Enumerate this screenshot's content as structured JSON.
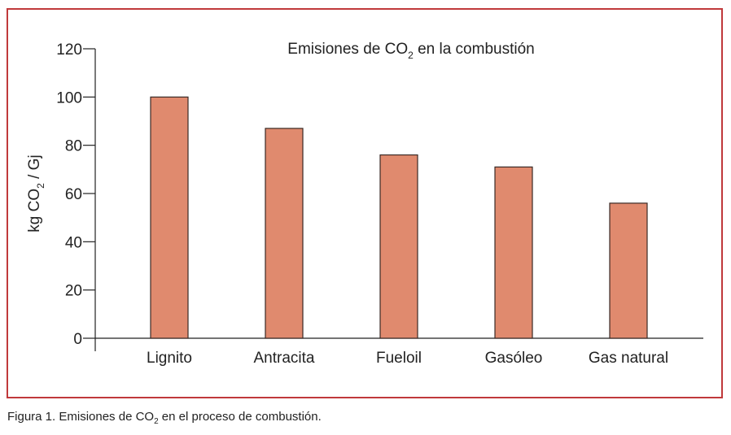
{
  "chart_data": {
    "type": "bar",
    "title": "Emisiones de CO2 en la combustión",
    "title_parts": {
      "pre": "Emisiones de CO",
      "sub": "2",
      "post": " en la combustión"
    },
    "xlabel": "",
    "ylabel": "kg CO2 / Gj",
    "ylabel_parts": {
      "pre": "kg CO",
      "sub": "2",
      "post": " / Gj"
    },
    "categories": [
      "Lignito",
      "Antracita",
      "Fueloil",
      "Gasóleo",
      "Gas natural"
    ],
    "values": [
      100,
      87,
      76,
      71,
      56
    ],
    "ylim": [
      0,
      120
    ],
    "yticks": [
      0,
      20,
      40,
      60,
      80,
      100,
      120
    ],
    "grid": false,
    "bar_color": "#e08a6e",
    "frame_color": "#c0393b"
  },
  "caption": {
    "pre": "Figura 1. Emisiones de CO",
    "sub": "2",
    "post": " en el proceso de combustión."
  }
}
